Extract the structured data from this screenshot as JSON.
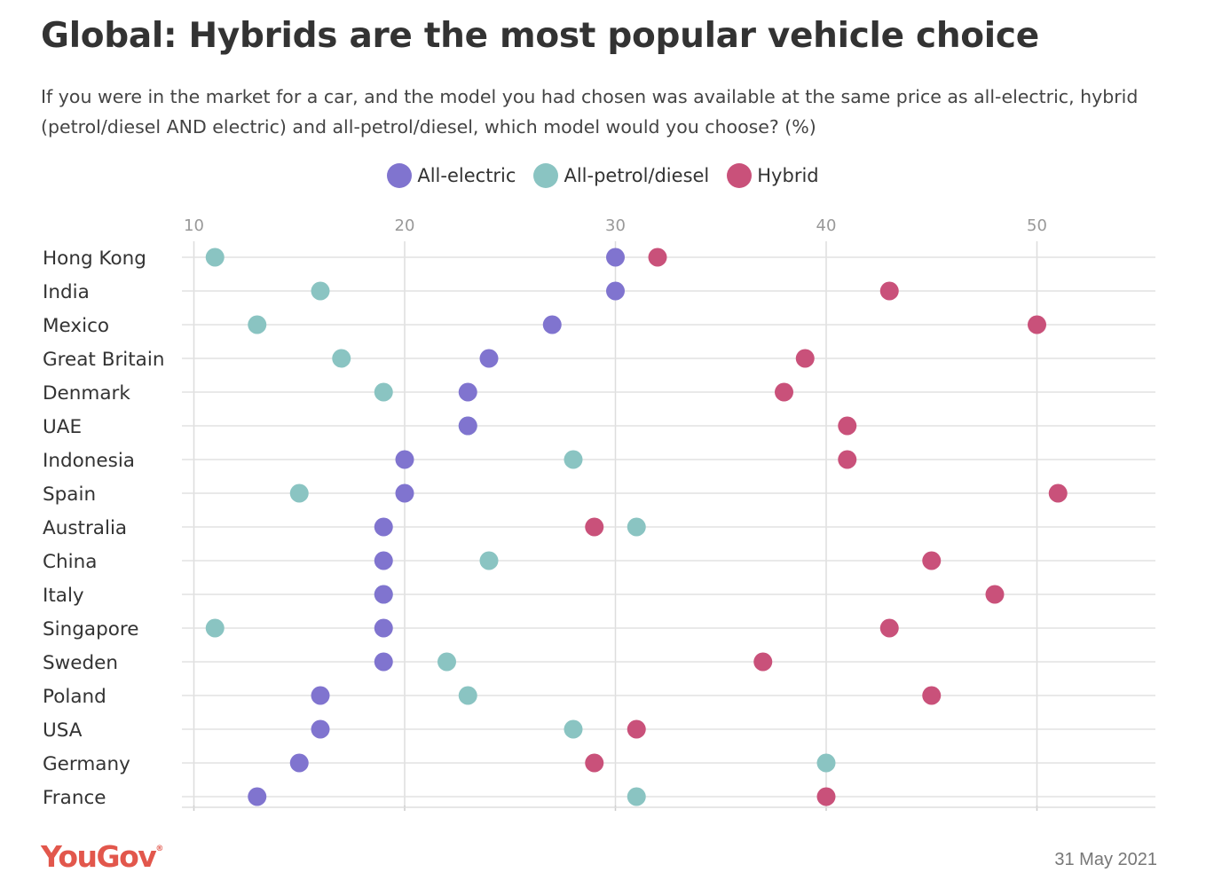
{
  "chart_data": {
    "type": "scatter",
    "title": "Global: Hybrids are the most popular vehicle choice",
    "subtitle": "If you were in the market for a car, and the model you had chosen was available at the same price as all-electric, hybrid (petrol/diesel AND electric) and all-petrol/diesel, which model would you choose? (%)",
    "xlim": [
      9.5,
      55
    ],
    "xticks": [
      10,
      20,
      30,
      40,
      50
    ],
    "xtick_labels": [
      "10",
      "20",
      "30",
      "40",
      "50"
    ],
    "legend_position": "top-center",
    "grid": true,
    "categories": [
      "Hong Kong",
      "India",
      "Mexico",
      "Great Britain",
      "Denmark",
      "UAE",
      "Indonesia",
      "Spain",
      "Australia",
      "China",
      "Italy",
      "Singapore",
      "Sweden",
      "Poland",
      "USA",
      "Germany",
      "France"
    ],
    "series": [
      {
        "name": "All-electric",
        "color": "#8074cf",
        "values": [
          30,
          30,
          27,
          24,
          23,
          23,
          20,
          20,
          19,
          19,
          19,
          19,
          19,
          16,
          16,
          15,
          13
        ]
      },
      {
        "name": "All-petrol/diesel",
        "color": "#8ac4c2",
        "values": [
          11,
          16,
          13,
          17,
          19,
          23,
          28,
          15,
          31,
          24,
          19,
          11,
          22,
          23,
          28,
          40,
          31
        ]
      },
      {
        "name": "Hybrid",
        "color": "#c9517a",
        "values": [
          32,
          43,
          50,
          39,
          38,
          41,
          41,
          51,
          29,
          45,
          48,
          43,
          37,
          45,
          31,
          29,
          40
        ]
      }
    ]
  },
  "footer": {
    "logo": "YouGov",
    "date": "31 May 2021"
  }
}
